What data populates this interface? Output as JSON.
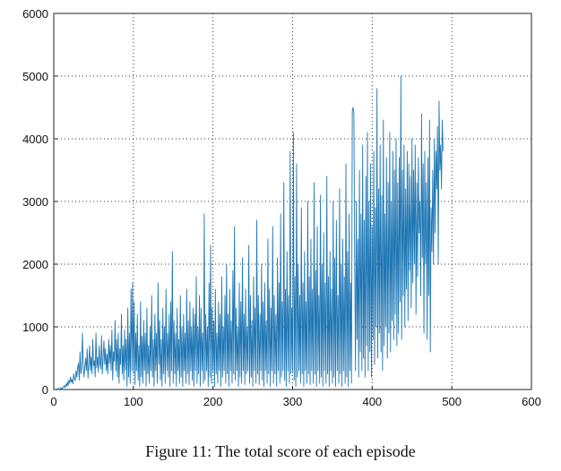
{
  "caption": "Figure 11: The total score of each episode",
  "chart_data": {
    "type": "line",
    "title": "",
    "xlabel": "",
    "ylabel": "",
    "xlim": [
      0,
      600
    ],
    "ylim": [
      0,
      6000
    ],
    "xticks": [
      0,
      100,
      200,
      300,
      400,
      500,
      600
    ],
    "yticks": [
      0,
      1000,
      2000,
      3000,
      4000,
      5000,
      6000
    ],
    "grid": "dotted",
    "line_color": "#1f77b4",
    "series": [
      {
        "name": "total score per episode",
        "x_start": 1,
        "x_step": 1,
        "values": [
          0,
          0,
          0,
          10,
          0,
          20,
          0,
          15,
          30,
          10,
          20,
          40,
          60,
          30,
          80,
          50,
          120,
          60,
          150,
          100,
          200,
          120,
          160,
          90,
          250,
          180,
          140,
          300,
          200,
          350,
          420,
          150,
          600,
          250,
          320,
          900,
          400,
          200,
          350,
          500,
          300,
          650,
          180,
          420,
          700,
          300,
          520,
          250,
          800,
          380,
          460,
          200,
          900,
          350,
          520,
          280,
          700,
          420,
          330,
          860,
          250,
          500,
          780,
          400,
          650,
          300,
          560,
          250,
          800,
          420,
          700,
          300,
          950,
          150,
          600,
          450,
          1100,
          300,
          800,
          200,
          900,
          100,
          650,
          400,
          1200,
          250,
          700,
          150,
          950,
          300,
          800,
          50,
          1300,
          200,
          900,
          100,
          1600,
          300,
          1700,
          250,
          1400,
          80,
          900,
          300,
          1200,
          150,
          700,
          50,
          1400,
          200,
          850,
          100,
          1100,
          300,
          900,
          50,
          1300,
          250,
          700,
          100,
          1000,
          300,
          1500,
          200,
          800,
          50,
          1200,
          300,
          900,
          100,
          1700,
          400,
          1100,
          150,
          800,
          50,
          1300,
          250,
          1000,
          100,
          1600,
          300,
          900,
          200,
          1200,
          50,
          1400,
          300,
          2200,
          100,
          1100,
          250,
          900,
          50,
          1300,
          300,
          800,
          100,
          1500,
          200,
          1000,
          50,
          1200,
          300,
          900,
          100,
          1600,
          250,
          1100,
          80,
          1400,
          300,
          1000,
          150,
          1300,
          50,
          1200,
          300,
          1800,
          100,
          1000,
          250,
          1500,
          50,
          1300,
          300,
          900,
          100,
          2800,
          150,
          1200,
          300,
          1000,
          50,
          1700,
          200,
          2300,
          100,
          1300,
          300,
          1100,
          50,
          1600,
          250,
          900,
          100,
          1400,
          300,
          1200,
          50,
          1800,
          200,
          1000,
          300,
          1500,
          100,
          2000,
          250,
          1200,
          50,
          1600,
          300,
          1100,
          100,
          1900,
          250,
          2600,
          150,
          1300,
          300,
          1000,
          50,
          1700,
          200,
          1400,
          100,
          2100,
          300,
          1200,
          80,
          1600,
          250,
          1000,
          300,
          2300,
          100,
          1500,
          200,
          1100,
          50,
          1800,
          300,
          1300,
          100,
          2700,
          250,
          1500,
          80,
          1200,
          300,
          2000,
          150,
          1400,
          50,
          1700,
          300,
          1100,
          100,
          2400,
          250,
          1600,
          50,
          1300,
          300,
          2600,
          100,
          1500,
          250,
          1200,
          50,
          2100,
          300,
          1700,
          100,
          2800,
          200,
          1400,
          300,
          3300,
          150,
          1600,
          50,
          2200,
          300,
          1500,
          100,
          3800,
          250,
          1300,
          300,
          4100,
          150,
          1800,
          50,
          3600,
          200,
          2000,
          300,
          1500,
          100,
          2900,
          250,
          1700,
          50,
          2200,
          300,
          1400,
          100,
          3000,
          250,
          1800,
          80,
          2400,
          300,
          1600,
          100,
          3300,
          250,
          1900,
          50,
          2600,
          300,
          1500,
          100,
          3100,
          200,
          2000,
          50,
          2500,
          300,
          1700,
          100,
          3400,
          250,
          1800,
          50,
          2200,
          300,
          1600,
          100,
          3000,
          200,
          2100,
          50,
          2700,
          300,
          1500,
          100,
          3200,
          250,
          2000,
          50,
          2400,
          300,
          1800,
          100,
          3600,
          200,
          2200,
          50,
          2800,
          300,
          1700,
          100,
          4450,
          4500,
          4400,
          2000,
          300,
          3000,
          800,
          2400,
          200,
          3500,
          600,
          2800,
          300,
          3900,
          500,
          2700,
          200,
          3400,
          700,
          4100,
          300,
          3000,
          600,
          3600,
          200,
          2600,
          800,
          3800,
          400,
          2900,
          1000,
          4800,
          500,
          3200,
          900,
          3900,
          600,
          3100,
          300,
          4300,
          700,
          2800,
          1000,
          3700,
          500,
          3300,
          900,
          4100,
          600,
          3000,
          1100,
          3800,
          800,
          3500,
          1200,
          4000,
          700,
          3300,
          900,
          3700,
          1400,
          5000,
          800,
          3500,
          1500,
          3900,
          1000,
          3200,
          1600,
          3800,
          1100,
          3600,
          1900,
          3400,
          1300,
          4000,
          1700,
          3500,
          2000,
          3900,
          1200,
          3300,
          1800,
          3700,
          2500,
          3000,
          1500,
          4400,
          2100,
          3600,
          900,
          3800,
          2000,
          3300,
          800,
          3700,
          1500,
          4300,
          600,
          2900,
          2200,
          3500,
          2000,
          4000,
          2500,
          3800,
          3200,
          4200,
          2000,
          4600,
          3500,
          3900,
          3200,
          4300,
          3800
        ]
      }
    ]
  }
}
